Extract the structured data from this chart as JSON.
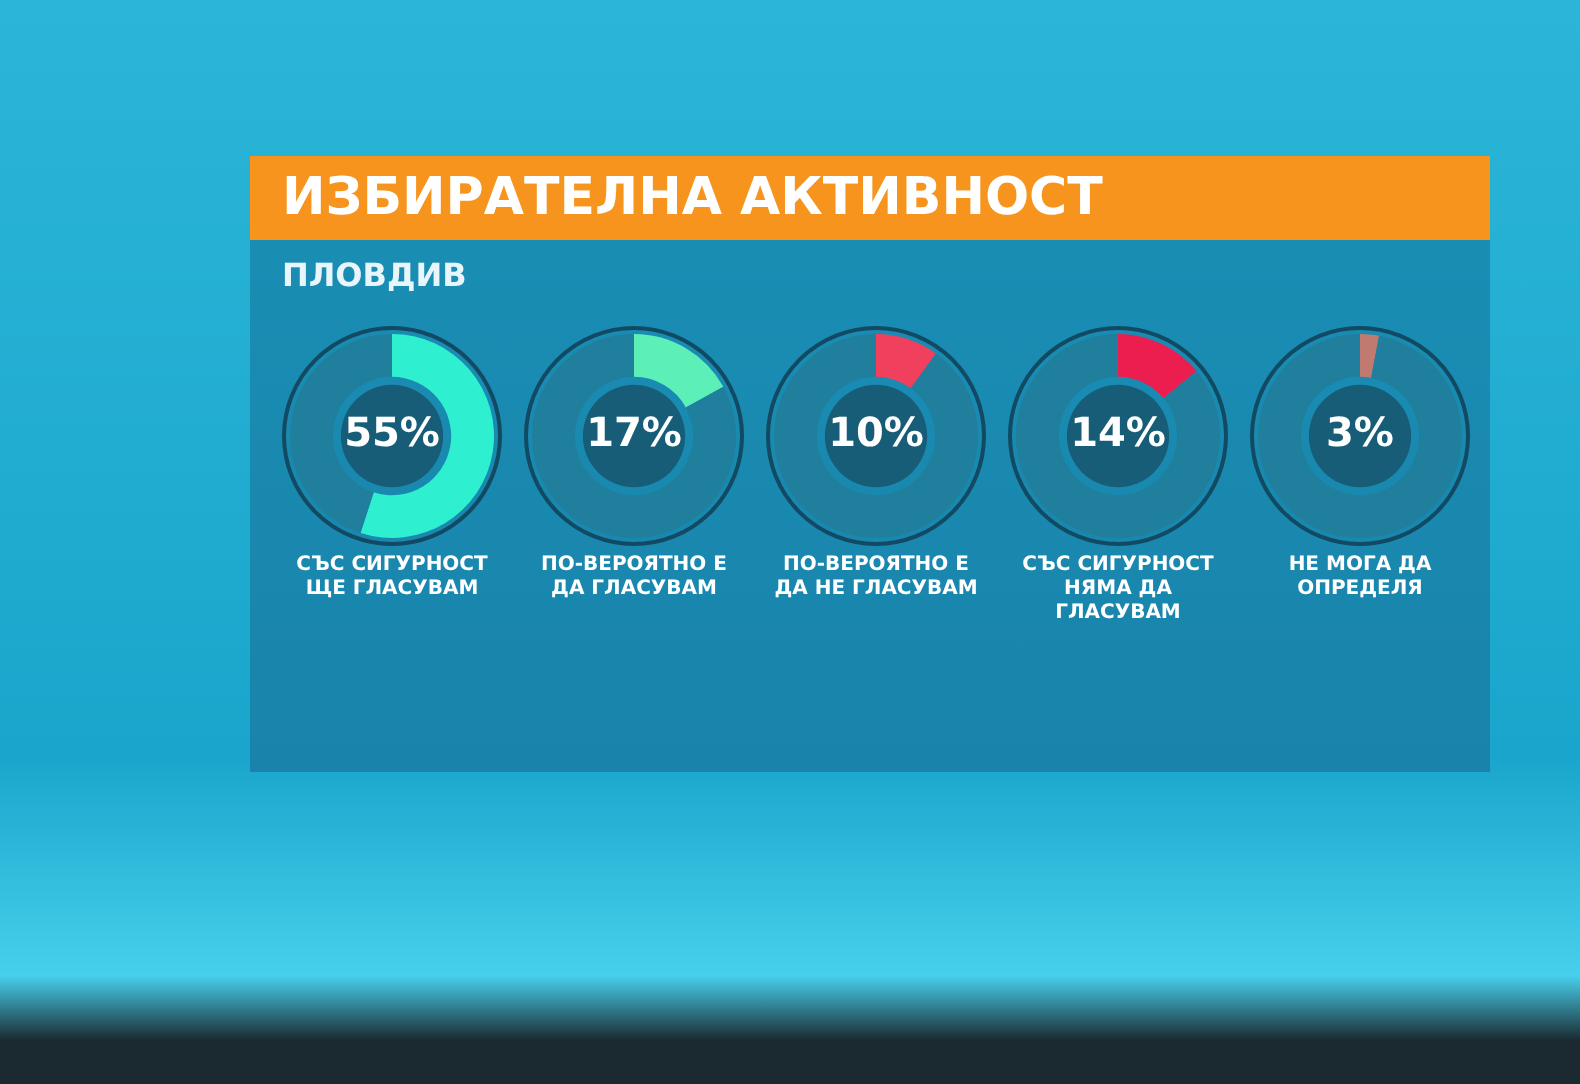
{
  "chart_data": [
    {
      "type": "donut",
      "title": "ИЗБИРАТЕЛНА АКТИВНОСТ",
      "subtitle": "ПЛОВДИВ",
      "xlabel": "СЪС СИГУРНОСТ ЩЕ ГЛАСУВАМ",
      "categories": [
        null,
        null
      ],
      "values": [
        55,
        45
      ],
      "colors": [
        "#2ef0d0",
        "#1f7f9c"
      ],
      "value_labels": [
        "55%",
        null
      ]
    },
    {
      "type": "donut",
      "xlabel": "ПО-ВЕРОЯТНО Е ДА ГЛАСУВАМ",
      "categories": [
        null,
        null
      ],
      "values": [
        17,
        83
      ],
      "colors": [
        "#5cf0b8",
        "#1f7f9c"
      ],
      "value_labels": [
        "17%",
        null
      ]
    },
    {
      "type": "donut",
      "xlabel": "ПО-ВЕРОЯТНО Е ДА НЕ ГЛАСУВАМ",
      "categories": [
        null,
        null
      ],
      "values": [
        10,
        90
      ],
      "colors": [
        "#f0405e",
        "#1f7f9c"
      ],
      "value_labels": [
        "10%",
        null
      ]
    },
    {
      "type": "donut",
      "xlabel": "СЪС СИГУРНОСТ НЯМА ДА ГЛАСУВАМ",
      "categories": [
        null,
        null
      ],
      "values": [
        14,
        86
      ],
      "colors": [
        "#ec1e50",
        "#1f7f9c"
      ],
      "value_labels": [
        "14%",
        null
      ]
    },
    {
      "type": "donut",
      "xlabel": "НЕ МОГА ДА ОПРЕДЕЛЯ",
      "categories": [
        null,
        null
      ],
      "values": [
        3,
        97
      ],
      "colors": [
        "#c07a70",
        "#1f7f9c"
      ],
      "value_labels": [
        "3%",
        null
      ]
    }
  ]
}
